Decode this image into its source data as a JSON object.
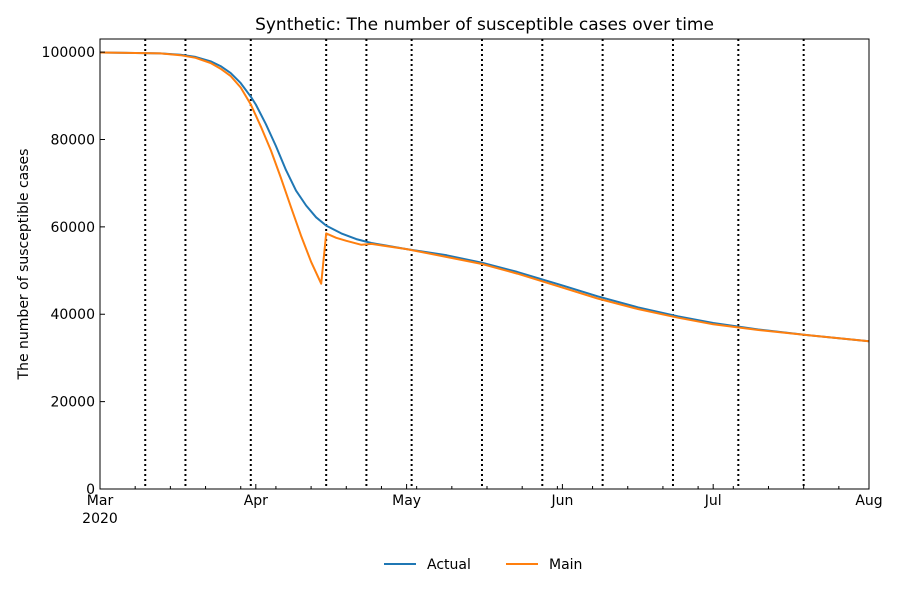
{
  "chart_data": {
    "type": "line",
    "title": "Synthetic: The number of susceptible cases over time",
    "xlabel": "",
    "ylabel": "The number of susceptible cases",
    "xlim": [
      "2020-03-01",
      "2020-08-01"
    ],
    "ylim": [
      0,
      103000
    ],
    "grid": false,
    "legend_position": "bottom-center",
    "x_ticks": [
      {
        "date": "2020-03-01",
        "label": "Mar",
        "sublabel": "2020"
      },
      {
        "date": "2020-04-01",
        "label": "Apr"
      },
      {
        "date": "2020-05-01",
        "label": "May"
      },
      {
        "date": "2020-06-01",
        "label": "Jun"
      },
      {
        "date": "2020-07-01",
        "label": "Jul"
      },
      {
        "date": "2020-08-01",
        "label": "Aug"
      }
    ],
    "y_ticks": [
      {
        "value": 0,
        "label": "0"
      },
      {
        "value": 20000,
        "label": "20000"
      },
      {
        "value": 40000,
        "label": "40000"
      },
      {
        "value": 60000,
        "label": "60000"
      },
      {
        "value": 80000,
        "label": "80000"
      },
      {
        "value": 100000,
        "label": "100000"
      }
    ],
    "vlines": [
      "2020-03-10",
      "2020-03-18",
      "2020-03-31",
      "2020-04-15",
      "2020-04-23",
      "2020-05-02",
      "2020-05-16",
      "2020-05-28",
      "2020-06-09",
      "2020-06-23",
      "2020-07-06",
      "2020-07-19"
    ],
    "series": [
      {
        "name": "Actual",
        "color": "#1f77b4",
        "points": [
          [
            "2020-03-01",
            99900
          ],
          [
            "2020-03-08",
            99800
          ],
          [
            "2020-03-13",
            99700
          ],
          [
            "2020-03-17",
            99400
          ],
          [
            "2020-03-20",
            98900
          ],
          [
            "2020-03-23",
            97900
          ],
          [
            "2020-03-25",
            96800
          ],
          [
            "2020-03-27",
            95200
          ],
          [
            "2020-03-29",
            92900
          ],
          [
            "2020-03-31",
            89800
          ],
          [
            "2020-04-01",
            88000
          ],
          [
            "2020-04-03",
            83500
          ],
          [
            "2020-04-05",
            78500
          ],
          [
            "2020-04-07",
            73000
          ],
          [
            "2020-04-09",
            68300
          ],
          [
            "2020-04-11",
            64900
          ],
          [
            "2020-04-13",
            62200
          ],
          [
            "2020-04-15",
            60300
          ],
          [
            "2020-04-18",
            58500
          ],
          [
            "2020-04-21",
            57200
          ],
          [
            "2020-04-24",
            56300
          ],
          [
            "2020-05-01",
            54900
          ],
          [
            "2020-05-09",
            53500
          ],
          [
            "2020-05-16",
            51800
          ],
          [
            "2020-05-23",
            49700
          ],
          [
            "2020-06-01",
            46600
          ],
          [
            "2020-06-08",
            44100
          ],
          [
            "2020-06-16",
            41600
          ],
          [
            "2020-06-24",
            39500
          ],
          [
            "2020-07-01",
            38000
          ],
          [
            "2020-07-10",
            36500
          ],
          [
            "2020-07-20",
            35200
          ],
          [
            "2020-08-01",
            33800
          ]
        ]
      },
      {
        "name": "Main",
        "color": "#ff7f0e",
        "points": [
          [
            "2020-03-01",
            99900
          ],
          [
            "2020-03-08",
            99800
          ],
          [
            "2020-03-13",
            99700
          ],
          [
            "2020-03-17",
            99300
          ],
          [
            "2020-03-20",
            98700
          ],
          [
            "2020-03-23",
            97500
          ],
          [
            "2020-03-25",
            96200
          ],
          [
            "2020-03-27",
            94500
          ],
          [
            "2020-03-29",
            91900
          ],
          [
            "2020-03-31",
            88000
          ],
          [
            "2020-04-02",
            83000
          ],
          [
            "2020-04-04",
            77500
          ],
          [
            "2020-04-06",
            71200
          ],
          [
            "2020-04-08",
            64500
          ],
          [
            "2020-04-10",
            58000
          ],
          [
            "2020-04-12",
            52000
          ],
          [
            "2020-04-14",
            47000
          ],
          [
            "2020-04-15",
            58500
          ],
          [
            "2020-04-17",
            57500
          ],
          [
            "2020-04-19",
            56800
          ],
          [
            "2020-04-22",
            55900
          ],
          [
            "2020-04-24",
            56100
          ],
          [
            "2020-05-01",
            54900
          ],
          [
            "2020-05-09",
            53100
          ],
          [
            "2020-05-16",
            51500
          ],
          [
            "2020-05-23",
            49300
          ],
          [
            "2020-06-01",
            46100
          ],
          [
            "2020-06-08",
            43600
          ],
          [
            "2020-06-16",
            41200
          ],
          [
            "2020-06-24",
            39200
          ],
          [
            "2020-07-01",
            37700
          ],
          [
            "2020-07-10",
            36400
          ],
          [
            "2020-07-20",
            35200
          ],
          [
            "2020-08-01",
            33800
          ]
        ]
      }
    ]
  }
}
